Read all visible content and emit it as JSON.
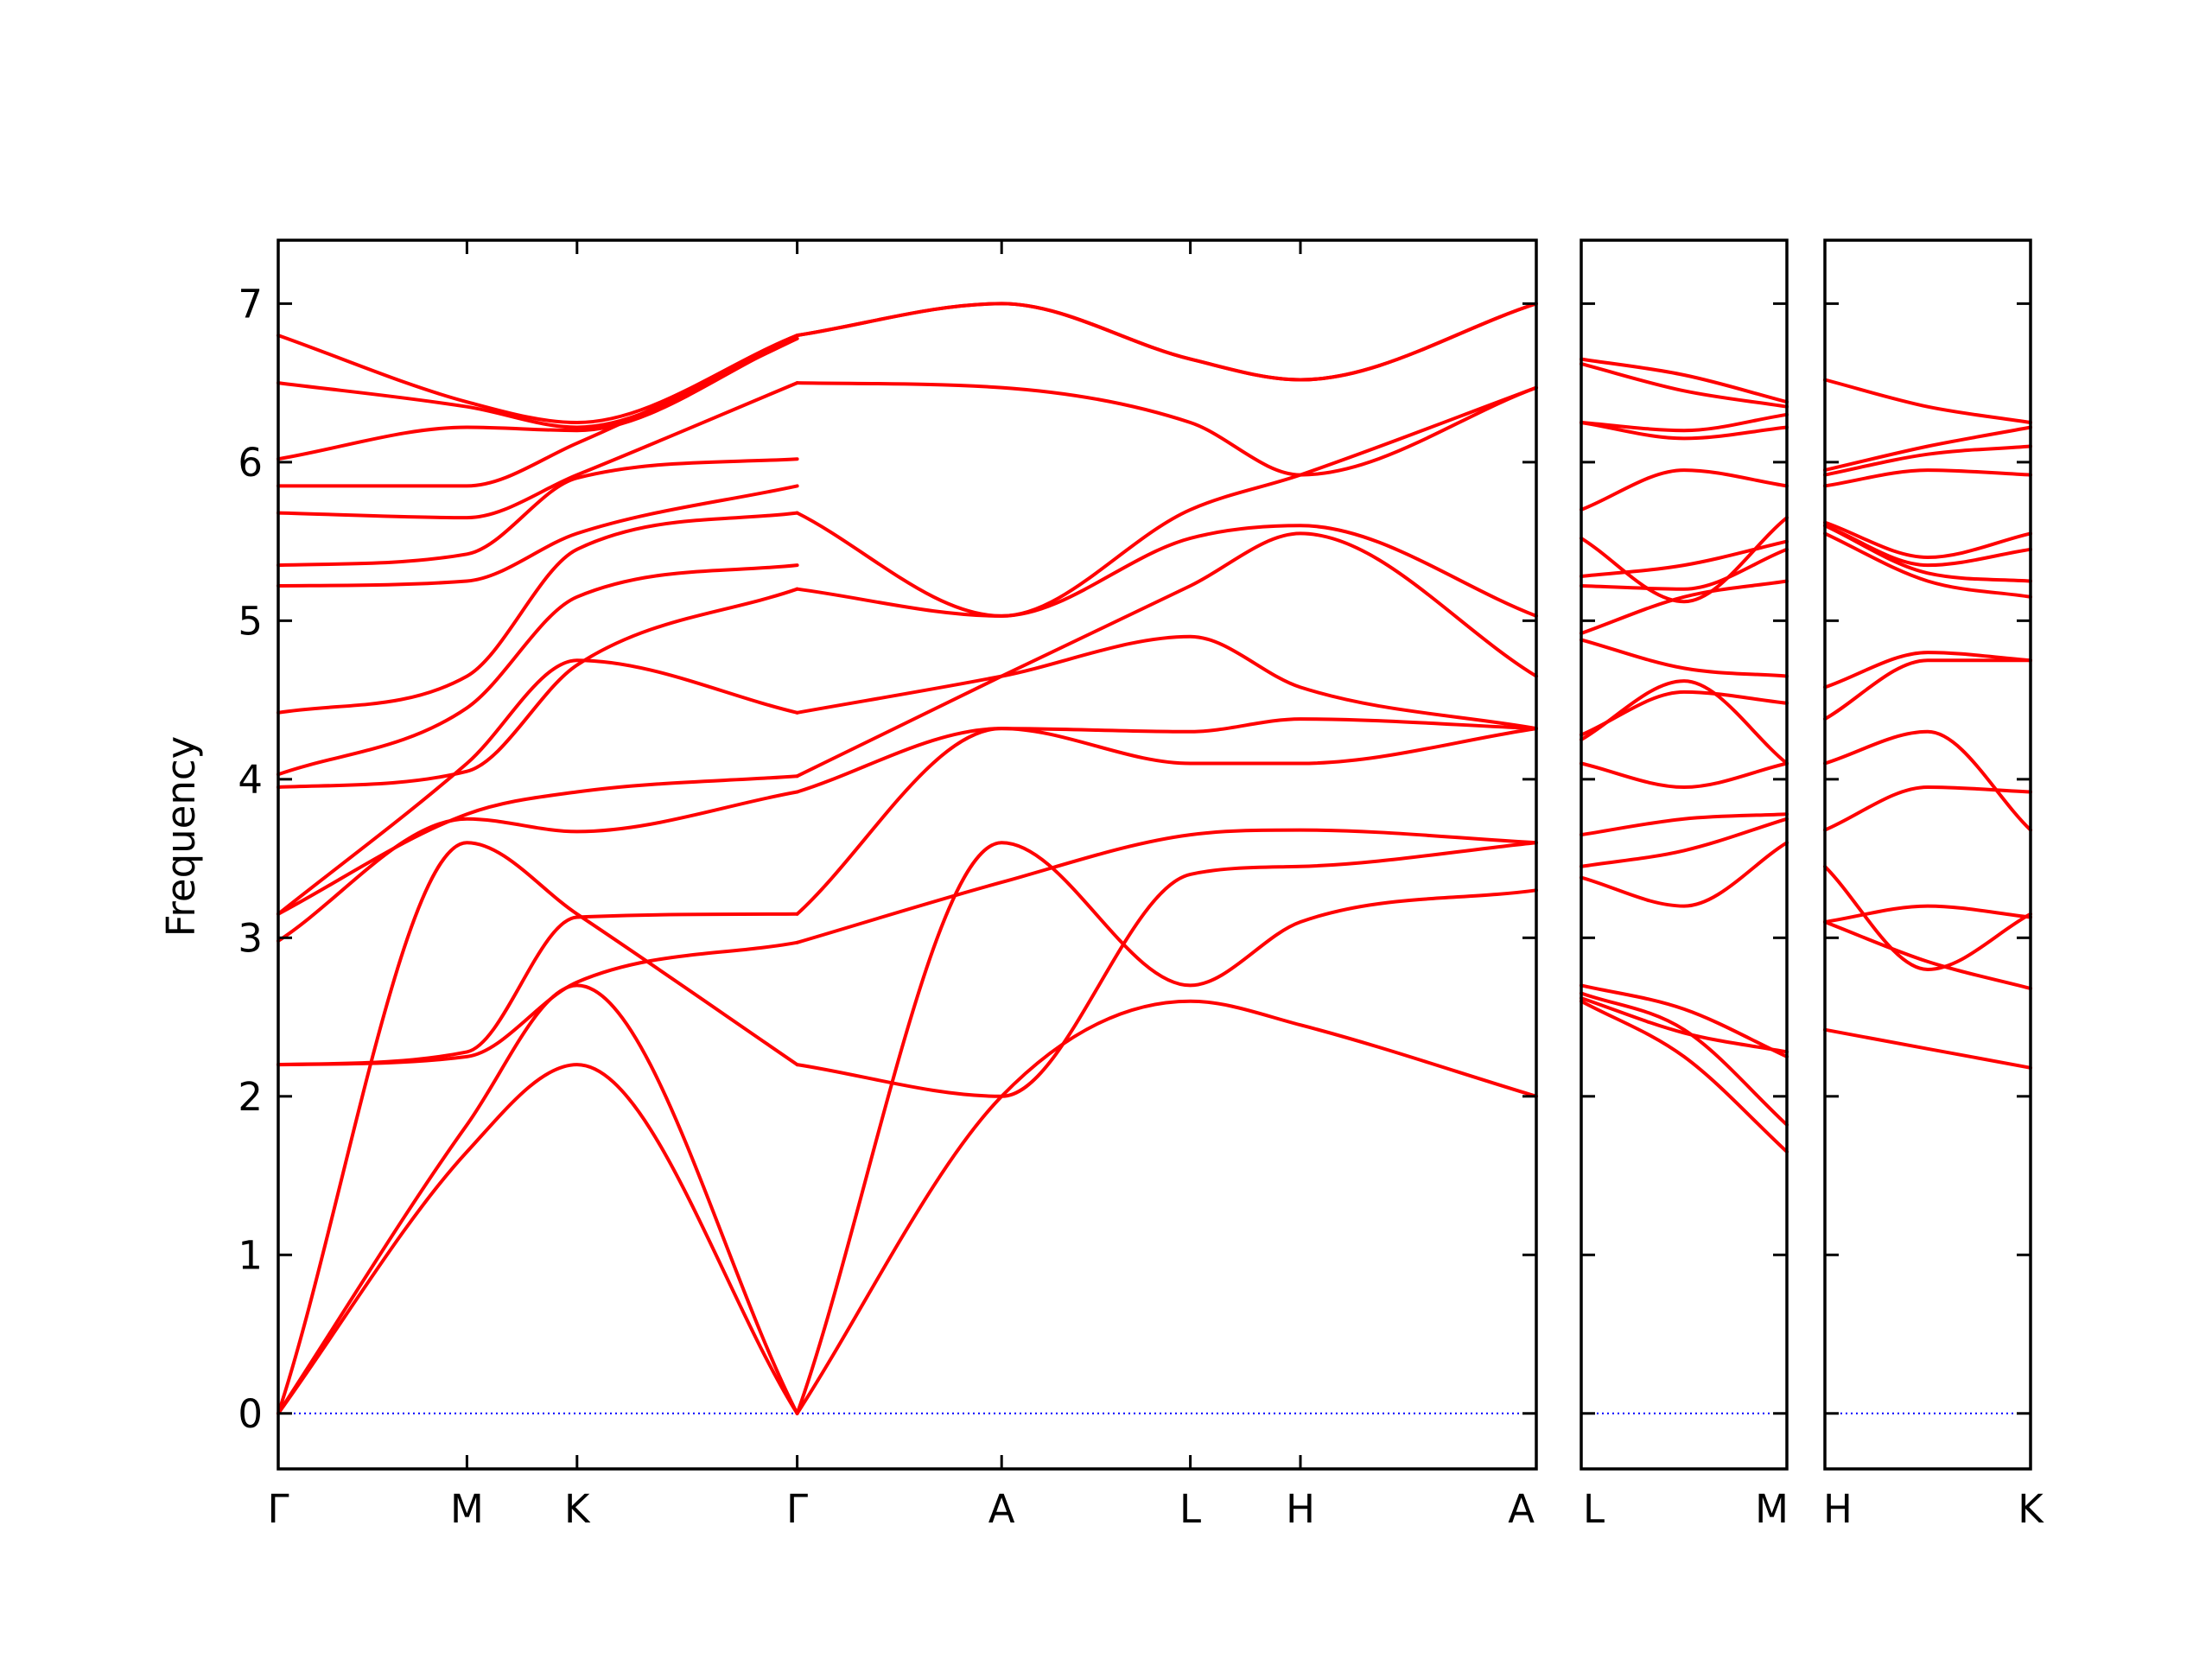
{
  "chart_data": {
    "type": "line",
    "ylabel": "Frequency",
    "ylim": [
      -0.35,
      7.4
    ],
    "yticks": [
      0,
      1,
      2,
      3,
      4,
      5,
      6,
      7
    ],
    "grid": false,
    "legend": "none",
    "line_color": "#ff0000",
    "zero_line_color": "#0000ff",
    "segments": [
      {
        "xlim": [
          0,
          8
        ],
        "ticks": [
          {
            "x": 0,
            "label": "Γ"
          },
          {
            "x": 1.2,
            "label": "M"
          },
          {
            "x": 1.9,
            "label": "K"
          },
          {
            "x": 3.3,
            "label": "Γ"
          },
          {
            "x": 4.6,
            "label": "A"
          },
          {
            "x": 5.8,
            "label": "L"
          },
          {
            "x": 6.5,
            "label": "H"
          },
          {
            "x": 8.0,
            "label": "A"
          }
        ],
        "bands": [
          {
            "x": [
              0,
              1.2,
              1.9,
              3.3
            ],
            "y": [
              0,
              1.65,
              2.2,
              0
            ]
          },
          {
            "x": [
              0,
              1.2,
              1.9,
              3.3
            ],
            "y": [
              0,
              1.82,
              2.7,
              0
            ]
          },
          {
            "x": [
              0,
              1.2,
              1.9,
              3.3
            ],
            "y": [
              0,
              3.6,
              3.15,
              2.2
            ]
          },
          {
            "x": [
              0,
              1.2,
              1.9,
              3.3
            ],
            "y": [
              2.2,
              2.25,
              2.72,
              2.97
            ]
          },
          {
            "x": [
              0,
              1.2,
              1.9,
              3.3
            ],
            "y": [
              2.2,
              2.28,
              3.13,
              3.15
            ]
          },
          {
            "x": [
              0,
              1.2,
              1.9,
              3.3
            ],
            "y": [
              2.98,
              3.75,
              3.67,
              3.92
            ]
          },
          {
            "x": [
              0,
              1.2,
              1.9,
              3.3
            ],
            "y": [
              3.15,
              3.78,
              3.92,
              4.02
            ]
          },
          {
            "x": [
              0,
              1.2,
              1.9,
              3.3
            ],
            "y": [
              3.15,
              4.1,
              4.75,
              4.42
            ]
          },
          {
            "x": [
              0,
              1.2,
              1.9,
              3.3
            ],
            "y": [
              3.95,
              4.05,
              4.72,
              5.2
            ]
          },
          {
            "x": [
              0,
              1.2,
              1.9,
              3.3
            ],
            "y": [
              4.03,
              4.45,
              5.15,
              5.35
            ]
          },
          {
            "x": [
              0,
              1.2,
              1.9,
              3.3
            ],
            "y": [
              4.42,
              4.65,
              5.45,
              5.68
            ]
          },
          {
            "x": [
              0,
              1.2,
              1.9,
              3.3
            ],
            "y": [
              5.22,
              5.25,
              5.55,
              5.85
            ]
          },
          {
            "x": [
              0,
              1.2,
              1.9,
              3.3
            ],
            "y": [
              5.35,
              5.42,
              5.9,
              6.02
            ]
          },
          {
            "x": [
              0,
              1.2,
              1.9,
              3.3
            ],
            "y": [
              5.68,
              5.65,
              5.92,
              6.5
            ]
          },
          {
            "x": [
              0,
              1.2,
              1.9,
              3.3
            ],
            "y": [
              5.85,
              5.85,
              6.12,
              6.78
            ]
          },
          {
            "x": [
              0,
              1.2,
              1.9,
              3.3
            ],
            "y": [
              6.02,
              6.22,
              6.2,
              6.78
            ]
          },
          {
            "x": [
              0,
              1.2,
              1.9,
              3.3
            ],
            "y": [
              6.5,
              6.35,
              6.22,
              6.8
            ]
          },
          {
            "x": [
              0,
              1.2,
              1.9,
              3.3
            ],
            "y": [
              6.8,
              6.38,
              6.25,
              6.8
            ]
          },
          {
            "x": [
              3.3,
              4.6,
              5.8,
              6.5,
              8.0
            ],
            "y": [
              0,
              2.0,
              2.6,
              2.45,
              2.0
            ]
          },
          {
            "x": [
              3.3,
              4.6,
              5.8,
              6.5,
              8.0
            ],
            "y": [
              0,
              3.6,
              2.7,
              3.1,
              3.3
            ]
          },
          {
            "x": [
              3.3,
              4.6,
              5.8,
              6.5,
              8.0
            ],
            "y": [
              2.2,
              2.0,
              3.4,
              3.45,
              3.6
            ]
          },
          {
            "x": [
              3.3,
              4.6,
              5.8,
              6.5,
              8.0
            ],
            "y": [
              2.97,
              3.35,
              3.65,
              3.68,
              3.6
            ]
          },
          {
            "x": [
              3.3,
              4.6,
              5.8,
              6.5,
              8.0
            ],
            "y": [
              3.15,
              4.32,
              4.1,
              4.1,
              4.32
            ]
          },
          {
            "x": [
              3.3,
              4.6,
              5.8,
              6.5,
              8.0
            ],
            "y": [
              3.92,
              4.32,
              4.3,
              4.38,
              4.32
            ]
          },
          {
            "x": [
              3.3,
              4.6,
              5.8,
              6.5,
              8.0
            ],
            "y": [
              4.02,
              4.65,
              5.22,
              5.55,
              4.65
            ]
          },
          {
            "x": [
              3.3,
              4.6,
              5.8,
              6.5,
              8.0
            ],
            "y": [
              4.42,
              4.65,
              4.9,
              4.58,
              4.32
            ]
          },
          {
            "x": [
              3.3,
              4.6,
              5.8,
              6.5,
              8.0
            ],
            "y": [
              5.2,
              5.03,
              5.52,
              5.6,
              5.03
            ]
          },
          {
            "x": [
              3.3,
              4.6,
              5.8,
              6.5,
              8.0
            ],
            "y": [
              5.68,
              5.03,
              5.7,
              5.92,
              6.47
            ]
          },
          {
            "x": [
              3.3,
              4.6,
              5.8,
              6.5,
              8.0
            ],
            "y": [
              6.5,
              6.47,
              6.25,
              5.92,
              6.47
            ]
          },
          {
            "x": [
              3.3,
              4.6,
              5.8,
              6.5,
              8.0
            ],
            "y": [
              6.8,
              7.0,
              6.65,
              6.52,
              7.0
            ]
          },
          {
            "x": [
              3.3,
              4.6,
              5.8,
              6.5,
              8.0
            ],
            "y": [
              6.8,
              7.0,
              6.65,
              6.52,
              7.0
            ]
          }
        ]
      },
      {
        "xlim": [
          0,
          1
        ],
        "ticks": [
          {
            "x": 0,
            "label": "L"
          },
          {
            "x": 1,
            "label": "M"
          }
        ],
        "bands": [
          {
            "x": [
              0,
              0.5,
              1
            ],
            "y": [
              2.6,
              2.25,
              1.65
            ]
          },
          {
            "x": [
              0,
              0.5,
              1
            ],
            "y": [
              2.65,
              2.42,
              1.82
            ]
          },
          {
            "x": [
              0,
              0.5,
              1
            ],
            "y": [
              2.7,
              2.55,
              2.25
            ]
          },
          {
            "x": [
              0,
              0.5,
              1
            ],
            "y": [
              2.62,
              2.4,
              2.28
            ]
          },
          {
            "x": [
              0,
              0.5,
              1
            ],
            "y": [
              3.38,
              3.2,
              3.6
            ]
          },
          {
            "x": [
              0,
              0.5,
              1
            ],
            "y": [
              3.45,
              3.55,
              3.75
            ]
          },
          {
            "x": [
              0,
              0.5,
              1
            ],
            "y": [
              3.65,
              3.75,
              3.78
            ]
          },
          {
            "x": [
              0,
              0.5,
              1
            ],
            "y": [
              4.1,
              3.95,
              4.1
            ]
          },
          {
            "x": [
              0,
              0.5,
              1
            ],
            "y": [
              4.25,
              4.62,
              4.1
            ]
          },
          {
            "x": [
              0,
              0.5,
              1
            ],
            "y": [
              4.28,
              4.55,
              4.48
            ]
          },
          {
            "x": [
              0,
              0.5,
              1
            ],
            "y": [
              4.88,
              4.7,
              4.65
            ]
          },
          {
            "x": [
              0,
              0.5,
              1
            ],
            "y": [
              4.92,
              5.15,
              5.25
            ]
          },
          {
            "x": [
              0,
              0.5,
              1
            ],
            "y": [
              5.22,
              5.2,
              5.45
            ]
          },
          {
            "x": [
              0,
              0.5,
              1
            ],
            "y": [
              5.28,
              5.35,
              5.5
            ]
          },
          {
            "x": [
              0,
              0.5,
              1
            ],
            "y": [
              5.52,
              5.12,
              5.65
            ]
          },
          {
            "x": [
              0,
              0.5,
              1
            ],
            "y": [
              5.7,
              5.95,
              5.85
            ]
          },
          {
            "x": [
              0,
              0.5,
              1
            ],
            "y": [
              6.25,
              6.15,
              6.22
            ]
          },
          {
            "x": [
              0,
              0.5,
              1
            ],
            "y": [
              6.25,
              6.2,
              6.3
            ]
          },
          {
            "x": [
              0,
              0.5,
              1
            ],
            "y": [
              6.62,
              6.45,
              6.35
            ]
          },
          {
            "x": [
              0,
              0.5,
              1
            ],
            "y": [
              6.65,
              6.55,
              6.38
            ]
          }
        ]
      },
      {
        "xlim": [
          0,
          1
        ],
        "ticks": [
          {
            "x": 0,
            "label": "H"
          },
          {
            "x": 1,
            "label": "K"
          }
        ],
        "bands": [
          {
            "x": [
              0,
              0.5,
              1
            ],
            "y": [
              2.42,
              2.3,
              2.18
            ]
          },
          {
            "x": [
              0,
              0.5,
              1
            ],
            "y": [
              3.1,
              2.85,
              2.68
            ]
          },
          {
            "x": [
              0,
              0.5,
              1
            ],
            "y": [
              3.45,
              2.8,
              3.15
            ]
          },
          {
            "x": [
              0,
              0.5,
              1
            ],
            "y": [
              3.1,
              3.2,
              3.13
            ]
          },
          {
            "x": [
              0,
              0.5,
              1
            ],
            "y": [
              3.68,
              3.95,
              3.92
            ]
          },
          {
            "x": [
              0,
              0.5,
              1
            ],
            "y": [
              4.1,
              4.3,
              3.68
            ]
          },
          {
            "x": [
              0,
              0.5,
              1
            ],
            "y": [
              4.38,
              4.75,
              4.75
            ]
          },
          {
            "x": [
              0,
              0.5,
              1
            ],
            "y": [
              4.58,
              4.8,
              4.75
            ]
          },
          {
            "x": [
              0,
              0.5,
              1
            ],
            "y": [
              5.55,
              5.25,
              5.15
            ]
          },
          {
            "x": [
              0,
              0.5,
              1
            ],
            "y": [
              5.6,
              5.3,
              5.25
            ]
          },
          {
            "x": [
              0,
              0.5,
              1
            ],
            "y": [
              5.6,
              5.35,
              5.45
            ]
          },
          {
            "x": [
              0,
              0.5,
              1
            ],
            "y": [
              5.62,
              5.4,
              5.55
            ]
          },
          {
            "x": [
              0,
              0.5,
              1
            ],
            "y": [
              5.85,
              5.95,
              5.92
            ]
          },
          {
            "x": [
              0,
              0.5,
              1
            ],
            "y": [
              5.92,
              6.05,
              6.1
            ]
          },
          {
            "x": [
              0,
              0.5,
              1
            ],
            "y": [
              5.95,
              6.1,
              6.22
            ]
          },
          {
            "x": [
              0,
              0.5,
              1
            ],
            "y": [
              6.52,
              6.35,
              6.25
            ]
          }
        ]
      }
    ]
  }
}
